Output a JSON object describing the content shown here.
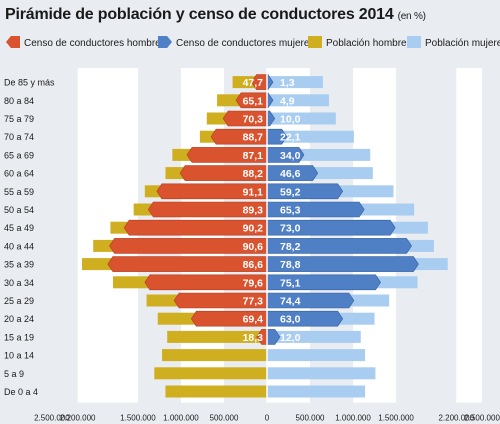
{
  "title": "Pirámide de población y censo de conductores 2014",
  "title_unit": "(en %)",
  "legend": [
    {
      "label": "Censo de conductores hombres",
      "color": "#d9532f",
      "icon": "left-arrow-swatch"
    },
    {
      "label": "Censo de conductores mujeres",
      "color": "#4f7fc4",
      "icon": "right-arrow-swatch"
    },
    {
      "label": "Población hombres",
      "color": "#cfae1f",
      "icon": "square-swatch"
    },
    {
      "label": "Población mujeres",
      "color": "#a9cdf0",
      "icon": "square-swatch"
    }
  ],
  "chart_data": {
    "type": "bar",
    "orientation": "horizontal-pyramid",
    "categories": [
      "De 85 y más",
      "80 a 84",
      "75 a 79",
      "70 a 74",
      "65 a 69",
      "60 a 64",
      "55 a 59",
      "50 a 54",
      "45 a 49",
      "40 a 44",
      "35 a 39",
      "30 a 34",
      "25 a 29",
      "20 a 24",
      "15 a 19",
      "10 a 14",
      "5 a 9",
      "De 0 a 4"
    ],
    "series": [
      {
        "name": "Población hombres",
        "side": "left",
        "color": "#cfae1f",
        "values": [
          400000,
          580000,
          700000,
          780000,
          1100000,
          1180000,
          1420000,
          1550000,
          1820000,
          2020000,
          2150000,
          1790000,
          1400000,
          1270000,
          1160000,
          1220000,
          1310000,
          1180000
        ]
      },
      {
        "name": "Población mujeres",
        "side": "right",
        "color": "#a9cdf0",
        "values": [
          650000,
          720000,
          800000,
          1010000,
          1200000,
          1230000,
          1470000,
          1710000,
          1870000,
          1940000,
          2100000,
          1750000,
          1420000,
          1250000,
          1090000,
          1140000,
          1260000,
          1140000
        ]
      },
      {
        "name": "Censo de conductores hombres",
        "side": "left",
        "color": "#d9532f",
        "values": [
          180000,
          360000,
          510000,
          650000,
          930000,
          1010000,
          1280000,
          1380000,
          1660000,
          1830000,
          1850000,
          1420000,
          1080000,
          880000,
          120000,
          0,
          0,
          0
        ]
      },
      {
        "name": "Censo de conductores mujeres",
        "side": "right",
        "color": "#4f7fc4",
        "values": [
          8000,
          30000,
          90000,
          230000,
          430000,
          590000,
          880000,
          1130000,
          1490000,
          1680000,
          1760000,
          1320000,
          1010000,
          880000,
          150000,
          0,
          0,
          0
        ]
      }
    ],
    "data_labels": {
      "men": [
        "47,7",
        "65,1",
        "70,3",
        "88,7",
        "87,1",
        "88,2",
        "91,1",
        "89,3",
        "90,2",
        "90,6",
        "86,6",
        "79,6",
        "77,3",
        "69,4",
        "18,3",
        "",
        "",
        ""
      ],
      "women": [
        "1,3",
        "4,9",
        "10,0",
        "22,1",
        "34,0",
        "46,6",
        "59,2",
        "65,3",
        "73,0",
        "78,2",
        "78,8",
        "75,1",
        "74,4",
        "63,0",
        "12,0",
        "",
        "",
        ""
      ]
    },
    "x_ticks": [
      "2.500.000",
      "2.200.000",
      "1.500.000",
      "1.000.000",
      "500.000",
      "0",
      "500.000",
      "1.000.000",
      "1.500.000",
      "2.200.000",
      "2.500.000"
    ],
    "x_tick_values": [
      -2500000,
      -2200000,
      -1500000,
      -1000000,
      -500000,
      0,
      500000,
      1000000,
      1500000,
      2200000,
      2500000
    ],
    "xlim": [
      -2650000,
      2650000
    ],
    "xlabel": "",
    "ylabel": "",
    "grid": "alternating vertical bands",
    "legend_position": "top"
  }
}
